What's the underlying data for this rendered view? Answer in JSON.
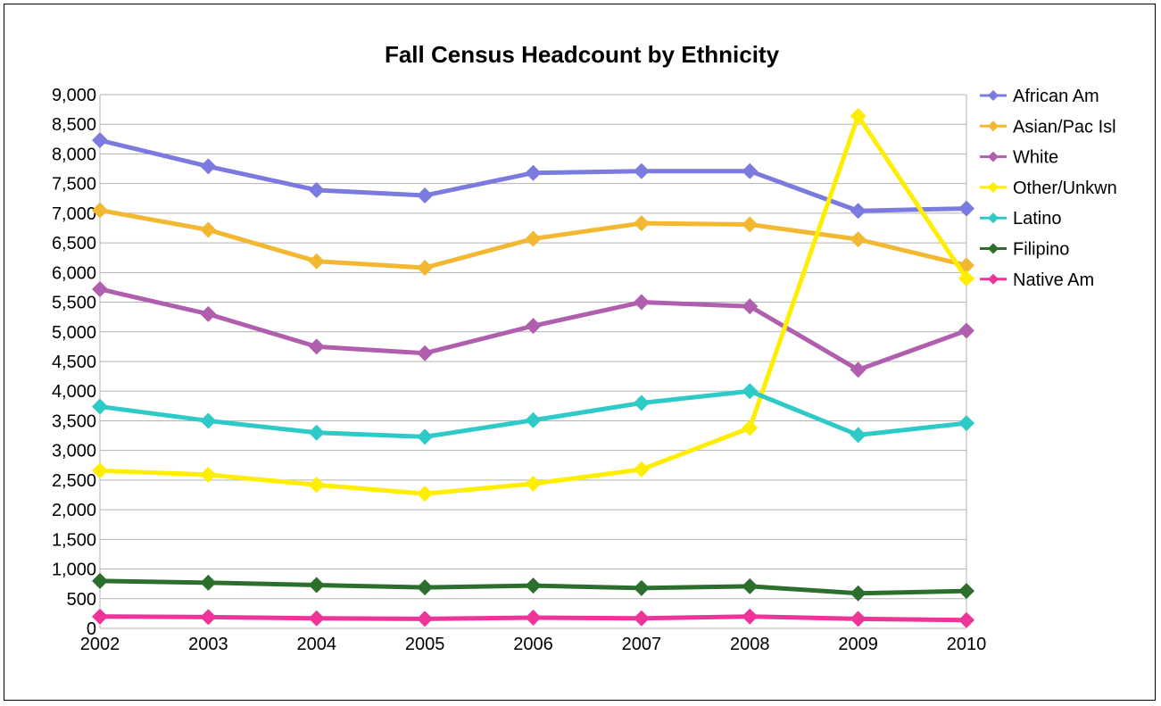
{
  "chart_data": {
    "type": "line",
    "title": "Fall Census Headcount by Ethnicity",
    "xlabel": "",
    "ylabel": "",
    "x": [
      "2002",
      "2003",
      "2004",
      "2005",
      "2006",
      "2007",
      "2008",
      "2009",
      "2010"
    ],
    "ylim": [
      0,
      9000
    ],
    "yticks": [
      0,
      500,
      1000,
      1500,
      2000,
      2500,
      3000,
      3500,
      4000,
      4500,
      5000,
      5500,
      6000,
      6500,
      7000,
      7500,
      8000,
      8500,
      9000
    ],
    "ytick_labels": [
      "0",
      "500",
      "1,000",
      "1,500",
      "2,000",
      "2,500",
      "3,000",
      "3,500",
      "4,000",
      "4,500",
      "5,000",
      "5,500",
      "6,000",
      "6,500",
      "7,000",
      "7,500",
      "8,000",
      "8,500",
      "9,000"
    ],
    "grid": true,
    "legend_position": "right",
    "series": [
      {
        "name": "African Am",
        "color": "#7b7bdf",
        "values": [
          8230,
          7790,
          7390,
          7300,
          7680,
          7710,
          7710,
          7040,
          7080
        ]
      },
      {
        "name": "Asian/Pac Isl",
        "color": "#f2b832",
        "values": [
          7050,
          6720,
          6190,
          6080,
          6570,
          6830,
          6810,
          6560,
          6120
        ]
      },
      {
        "name": "White",
        "color": "#b05fae",
        "values": [
          5720,
          5300,
          4750,
          4640,
          5100,
          5500,
          5430,
          4360,
          5020
        ]
      },
      {
        "name": "Other/Unkwn",
        "color": "#ffee00",
        "values": [
          2660,
          2590,
          2420,
          2270,
          2440,
          2680,
          3380,
          8640,
          5900
        ]
      },
      {
        "name": "Latino",
        "color": "#2ecac8",
        "values": [
          3740,
          3500,
          3300,
          3230,
          3510,
          3800,
          4000,
          3260,
          3460
        ]
      },
      {
        "name": "Filipino",
        "color": "#2c6e2c",
        "values": [
          800,
          770,
          730,
          690,
          720,
          680,
          710,
          590,
          630
        ]
      },
      {
        "name": "Native Am",
        "color": "#ee3399",
        "values": [
          200,
          190,
          170,
          160,
          180,
          170,
          200,
          160,
          140
        ]
      }
    ]
  }
}
